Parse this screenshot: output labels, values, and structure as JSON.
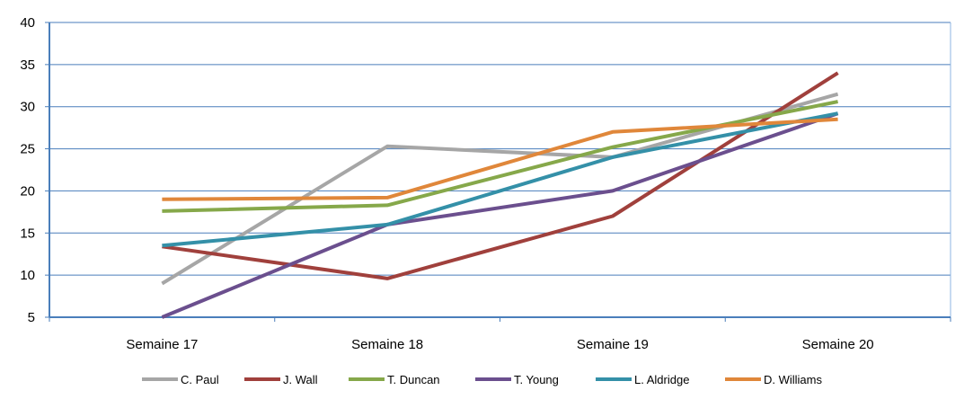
{
  "chart_data": {
    "type": "line",
    "categories": [
      "Semaine 17",
      "Semaine 18",
      "Semaine 19",
      "Semaine 20"
    ],
    "ylim": [
      5,
      40
    ],
    "yticks": [
      5,
      10,
      15,
      20,
      25,
      30,
      35,
      40
    ],
    "grid": true,
    "legend_position": "bottom",
    "series": [
      {
        "name": "C. Paul",
        "color": "#a6a6a6",
        "values": [
          9,
          25.3,
          24,
          31.5
        ]
      },
      {
        "name": "J. Wall",
        "color": "#a0403c",
        "values": [
          13.4,
          9.6,
          17,
          34
        ]
      },
      {
        "name": "T. Duncan",
        "color": "#86a84a",
        "values": [
          17.6,
          18.3,
          25.2,
          30.6
        ]
      },
      {
        "name": "T. Young",
        "color": "#6b4f8e",
        "values": [
          5,
          16,
          20,
          29.2
        ]
      },
      {
        "name": "L. Aldridge",
        "color": "#3490a8",
        "values": [
          13.5,
          16,
          24,
          29.2
        ]
      },
      {
        "name": "D. Williams",
        "color": "#e0873a",
        "values": [
          19,
          19.2,
          27,
          28.5
        ]
      }
    ]
  }
}
